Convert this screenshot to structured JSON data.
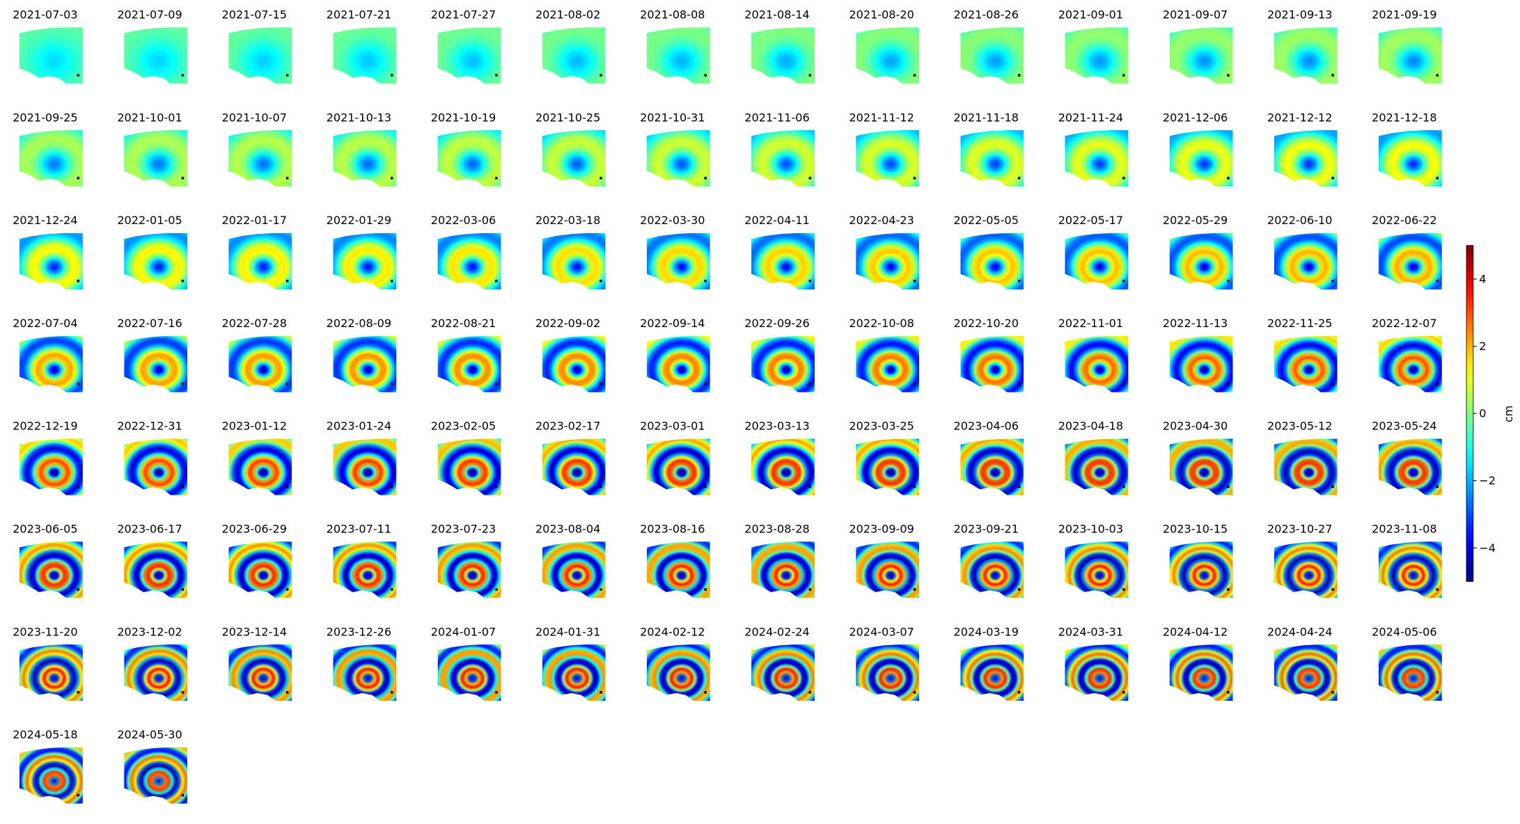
{
  "chart_data": {
    "type": "image_grid",
    "titles": [
      "2021-07-03",
      "2021-07-09",
      "2021-07-15",
      "2021-07-21",
      "2021-07-27",
      "2021-08-02",
      "2021-08-08",
      "2021-08-14",
      "2021-08-20",
      "2021-08-26",
      "2021-09-01",
      "2021-09-07",
      "2021-09-13",
      "2021-09-19",
      "2021-09-25",
      "2021-10-01",
      "2021-10-07",
      "2021-10-13",
      "2021-10-19",
      "2021-10-25",
      "2021-10-31",
      "2021-11-06",
      "2021-11-12",
      "2021-11-18",
      "2021-11-24",
      "2021-12-06",
      "2021-12-12",
      "2021-12-18",
      "2021-12-24",
      "2022-01-05",
      "2022-01-17",
      "2022-01-29",
      "2022-03-06",
      "2022-03-18",
      "2022-03-30",
      "2022-04-11",
      "2022-04-23",
      "2022-05-05",
      "2022-05-17",
      "2022-05-29",
      "2022-06-10",
      "2022-06-22",
      "2022-07-04",
      "2022-07-16",
      "2022-07-28",
      "2022-08-09",
      "2022-08-21",
      "2022-09-02",
      "2022-09-14",
      "2022-09-26",
      "2022-10-08",
      "2022-10-20",
      "2022-11-01",
      "2022-11-13",
      "2022-11-25",
      "2022-12-07",
      "2022-12-19",
      "2022-12-31",
      "2023-01-12",
      "2023-01-24",
      "2023-02-05",
      "2023-02-17",
      "2023-03-01",
      "2023-03-13",
      "2023-03-25",
      "2023-04-06",
      "2023-04-18",
      "2023-04-30",
      "2023-05-12",
      "2023-05-24",
      "2023-06-05",
      "2023-06-17",
      "2023-06-29",
      "2023-07-11",
      "2023-07-23",
      "2023-08-04",
      "2023-08-16",
      "2023-08-28",
      "2023-09-09",
      "2023-09-21",
      "2023-10-03",
      "2023-10-15",
      "2023-10-27",
      "2023-11-08",
      "2023-11-20",
      "2023-12-02",
      "2023-12-14",
      "2023-12-26",
      "2024-01-07",
      "2024-01-31",
      "2024-02-12",
      "2024-02-24",
      "2024-03-07",
      "2024-03-19",
      "2024-03-31",
      "2024-04-12",
      "2024-04-24",
      "2024-05-06",
      "2024-05-18",
      "2024-05-30"
    ],
    "colorbar": {
      "label": "cm",
      "colormap": "jet",
      "ylim": [
        -5,
        5
      ],
      "yticks": [
        {
          "value": -4,
          "label": "−4"
        },
        {
          "value": -2,
          "label": "−2"
        },
        0,
        2,
        4
      ]
    }
  }
}
